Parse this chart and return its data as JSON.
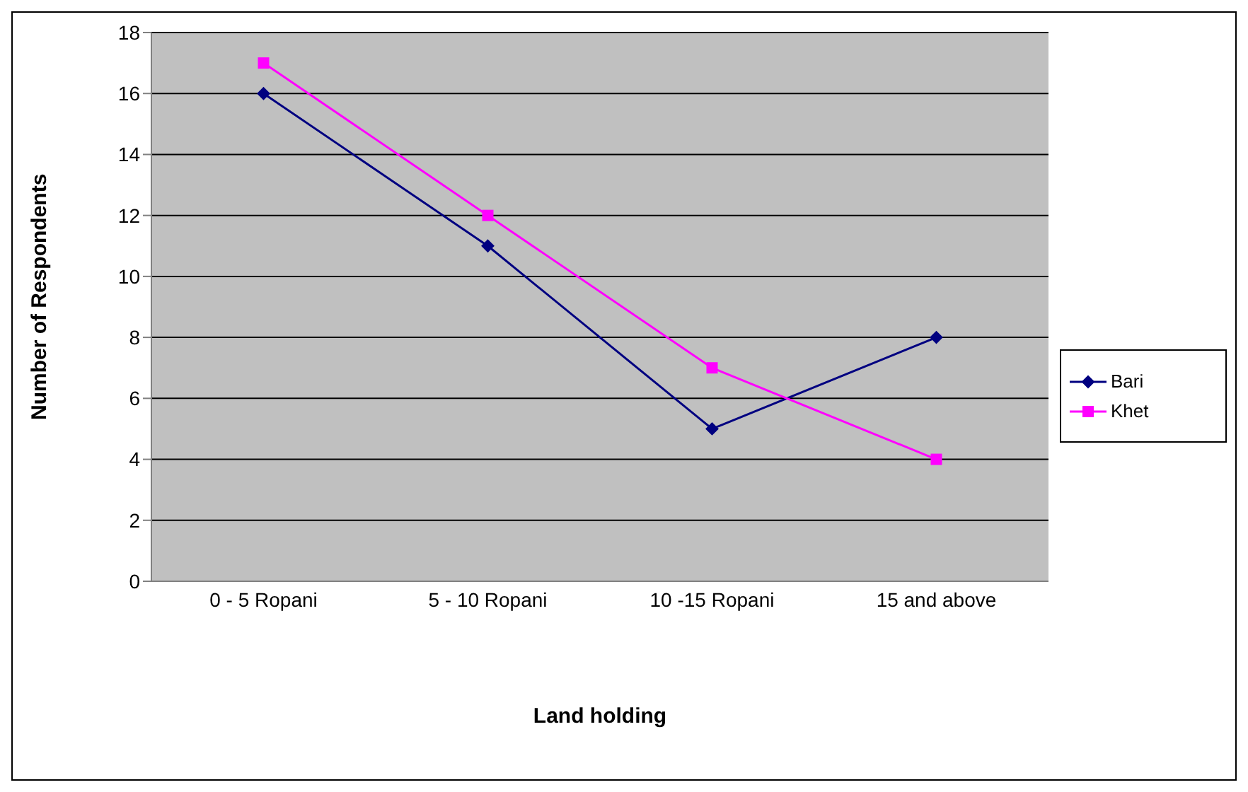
{
  "chart_data": {
    "type": "line",
    "xlabel": "Land holding",
    "ylabel": "Number of Respondents",
    "categories": [
      "0 - 5 Ropani",
      "5 - 10 Ropani",
      "10 -15 Ropani",
      "15 and above"
    ],
    "series": [
      {
        "name": "Bari",
        "color": "#000080",
        "values": [
          16,
          11,
          5,
          8
        ],
        "marker": "diamond"
      },
      {
        "name": "Khet",
        "color": "#ff00ff",
        "values": [
          17,
          12,
          7,
          4
        ],
        "marker": "square"
      }
    ],
    "ylim": [
      0,
      18
    ],
    "yticks": [
      0,
      2,
      4,
      6,
      8,
      10,
      12,
      14,
      16,
      18
    ],
    "grid": "y",
    "legend": "right"
  }
}
